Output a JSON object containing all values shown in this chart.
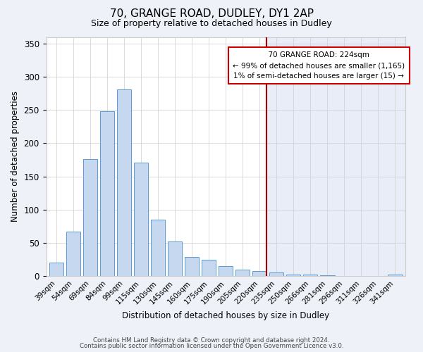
{
  "title": "70, GRANGE ROAD, DUDLEY, DY1 2AP",
  "subtitle": "Size of property relative to detached houses in Dudley",
  "xlabel": "Distribution of detached houses by size in Dudley",
  "ylabel": "Number of detached properties",
  "footer1": "Contains HM Land Registry data © Crown copyright and database right 2024.",
  "footer2": "Contains public sector information licensed under the Open Government Licence v3.0.",
  "categories": [
    "39sqm",
    "54sqm",
    "69sqm",
    "84sqm",
    "99sqm",
    "115sqm",
    "130sqm",
    "145sqm",
    "160sqm",
    "175sqm",
    "190sqm",
    "205sqm",
    "220sqm",
    "235sqm",
    "250sqm",
    "266sqm",
    "281sqm",
    "296sqm",
    "311sqm",
    "326sqm",
    "341sqm"
  ],
  "values": [
    20,
    67,
    176,
    248,
    281,
    171,
    85,
    52,
    29,
    24,
    15,
    10,
    7,
    5,
    2,
    2,
    1,
    0,
    0,
    0,
    2
  ],
  "bar_color": "#c5d8ef",
  "bar_edge_color": "#5b9bd5",
  "bg_color": "#eef1f8",
  "plot_bg_left": "#ffffff",
  "plot_bg_right": "#e8edf7",
  "grid_color": "#cccccc",
  "vline_color": "#aa0000",
  "annotation_title": "70 GRANGE ROAD: 224sqm",
  "annotation_line1": "← 99% of detached houses are smaller (1,165)",
  "annotation_line2": "1% of semi-detached houses are larger (15) →",
  "annotation_box_edge": "#cc0000",
  "ylim": [
    0,
    360
  ],
  "yticks": [
    0,
    50,
    100,
    150,
    200,
    250,
    300,
    350
  ],
  "title_fontsize": 11,
  "subtitle_fontsize": 9
}
